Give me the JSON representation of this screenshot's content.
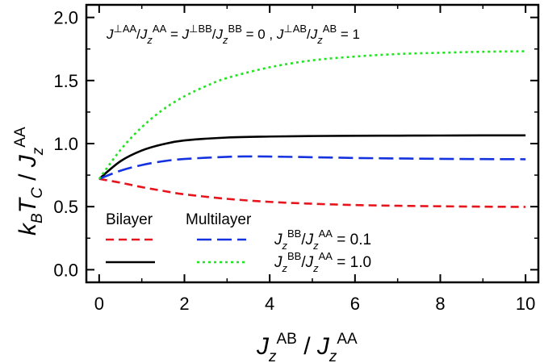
{
  "chart_data": {
    "type": "line",
    "title": "",
    "xlabel": "J_z^AB / J_z^AA",
    "ylabel": "k_B T_C / J_z^AA",
    "xlim": [
      -0.3,
      10.3
    ],
    "ylim": [
      -0.1,
      2.1
    ],
    "xticks": [
      0,
      2,
      4,
      6,
      8,
      10
    ],
    "yticks": [
      0.0,
      0.5,
      1.0,
      1.5,
      2.0
    ],
    "xtick_labels": [
      "0",
      "2",
      "4",
      "6",
      "8",
      "10"
    ],
    "ytick_labels": [
      "0.0",
      "0.5",
      "1.0",
      "1.5",
      "2.0"
    ],
    "grid": false,
    "annotation": "J⊥^AA/Jz^AA = J⊥^BB/Jz^BB = 0 , J⊥^AB/Jz^AB = 1",
    "legend": {
      "placement": "bottom",
      "column_headers": [
        "Bilayer",
        "Multilayer"
      ],
      "row_labels": [
        "Jz^BB/Jz^AA = 0.1",
        "Jz^BB/Jz^AA = 1.0"
      ]
    },
    "series": [
      {
        "group": "Bilayer",
        "condition": "Jz^BB/Jz^AA = 0.1",
        "color": "#e8141c",
        "dash": "short-dash",
        "x": [
          0,
          0.5,
          1,
          1.5,
          2,
          3,
          4,
          5,
          6,
          7,
          8,
          9,
          10
        ],
        "y": [
          0.72,
          0.69,
          0.655,
          0.625,
          0.598,
          0.562,
          0.538,
          0.523,
          0.513,
          0.507,
          0.503,
          0.5,
          0.498
        ]
      },
      {
        "group": "Bilayer",
        "condition": "Jz^BB/Jz^AA = 1.0",
        "color": "#000000",
        "dash": "solid",
        "x": [
          0,
          0.5,
          1,
          1.5,
          2,
          3,
          4,
          5,
          6,
          7,
          8,
          9,
          10
        ],
        "y": [
          0.72,
          0.86,
          0.945,
          0.995,
          1.025,
          1.048,
          1.056,
          1.06,
          1.062,
          1.063,
          1.064,
          1.065,
          1.065
        ]
      },
      {
        "group": "Multilayer",
        "condition": "Jz^BB/Jz^AA = 0.1",
        "color": "#1432e0",
        "dash": "long-dash",
        "x": [
          0,
          0.5,
          1,
          1.5,
          2,
          3,
          3.5,
          4,
          5,
          6,
          7,
          8,
          9,
          10
        ],
        "y": [
          0.72,
          0.785,
          0.83,
          0.86,
          0.878,
          0.895,
          0.898,
          0.897,
          0.892,
          0.886,
          0.882,
          0.879,
          0.877,
          0.876
        ]
      },
      {
        "group": "Multilayer",
        "condition": "Jz^BB/Jz^AA = 1.0",
        "color": "#1ee61e",
        "dash": "dotted",
        "x": [
          0,
          0.5,
          1,
          1.5,
          2,
          2.5,
          3,
          4,
          5,
          6,
          7,
          8,
          9,
          10
        ],
        "y": [
          0.72,
          0.95,
          1.13,
          1.27,
          1.375,
          1.455,
          1.52,
          1.605,
          1.66,
          1.69,
          1.71,
          1.72,
          1.728,
          1.732
        ]
      }
    ]
  }
}
